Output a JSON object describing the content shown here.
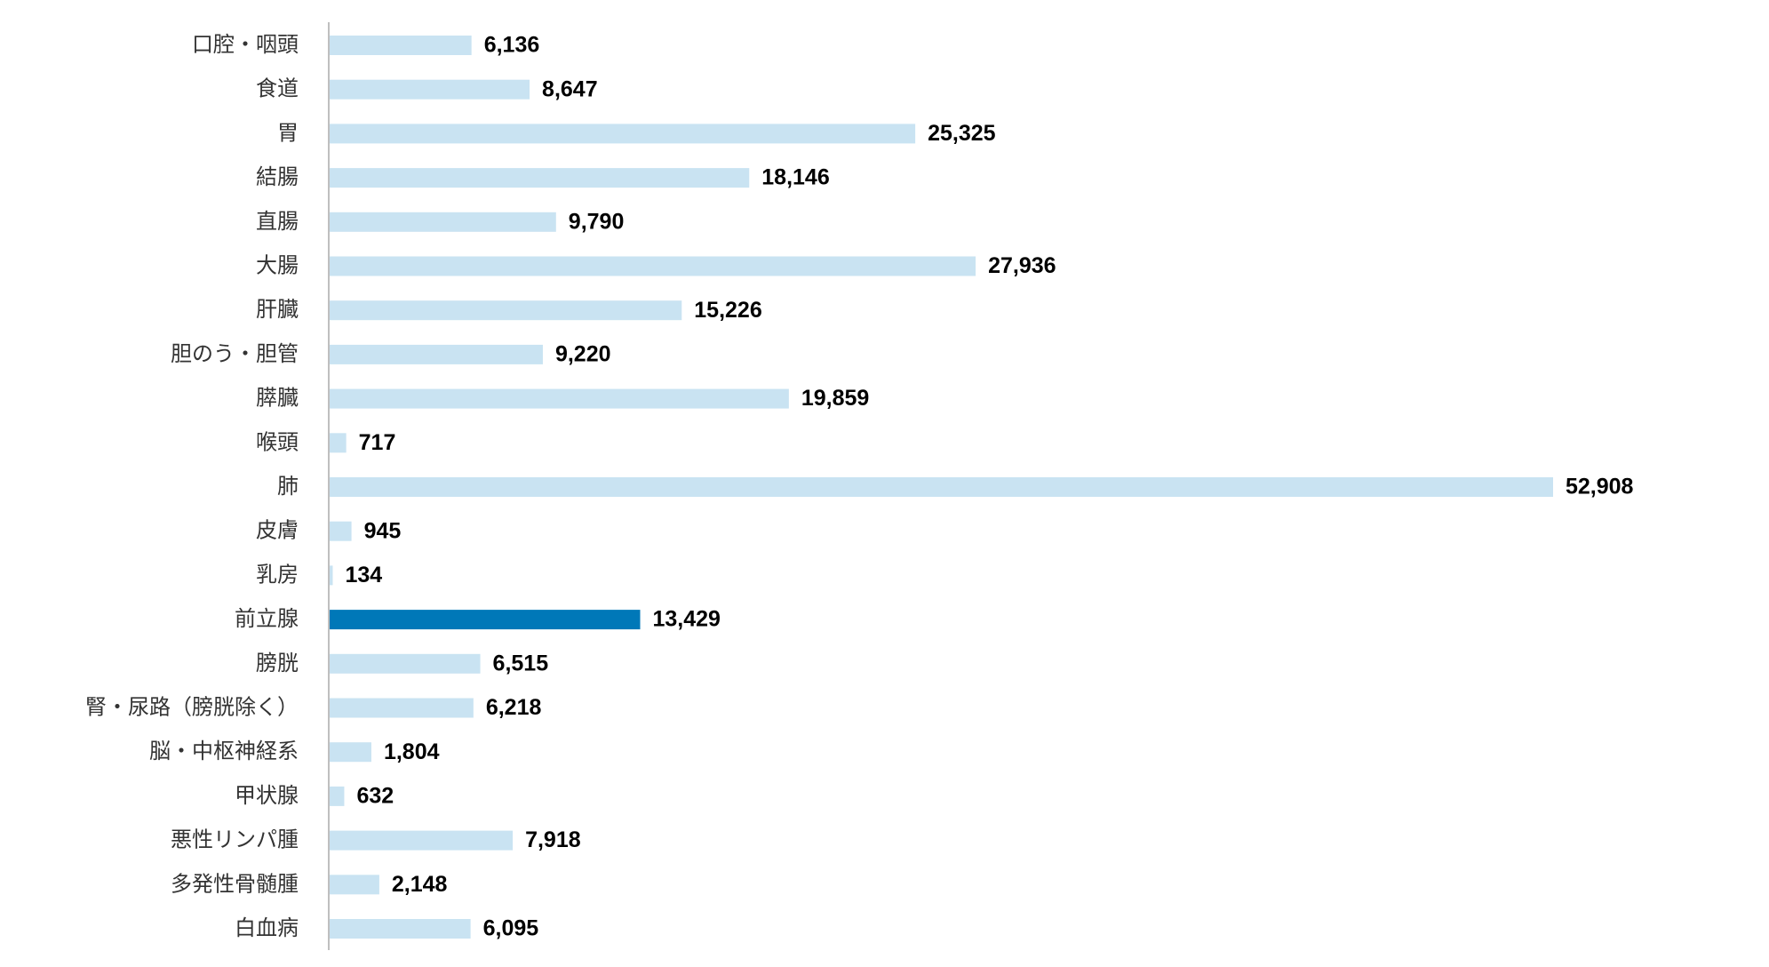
{
  "chart_data": {
    "type": "barh",
    "categories": [
      "口腔・咽頭",
      "食道",
      "胃",
      "結腸",
      "直腸",
      "大腸",
      "肝臓",
      "胆のう・胆管",
      "膵臓",
      "喉頭",
      "肺",
      "皮膚",
      "乳房",
      "前立腺",
      "膀胱",
      "腎・尿路（膀胱除く）",
      "脳・中枢神経系",
      "甲状腺",
      "悪性リンパ腫",
      "多発性骨髄腫",
      "白血病"
    ],
    "values": [
      6136,
      8647,
      25325,
      18146,
      9790,
      27936,
      15226,
      9220,
      19859,
      717,
      52908,
      945,
      134,
      13429,
      6515,
      6218,
      1804,
      632,
      7918,
      2148,
      6095
    ],
    "value_labels": [
      "6,136",
      "8,647",
      "25,325",
      "18,146",
      "9,790",
      "27,936",
      "15,226",
      "9,220",
      "19,859",
      "717",
      "52,908",
      "945",
      "134",
      "13,429",
      "6,515",
      "6,218",
      "1,804",
      "632",
      "7,918",
      "2,148",
      "6,095"
    ],
    "colors": [
      "#c9e3f2",
      "#c9e3f2",
      "#c9e3f2",
      "#c9e3f2",
      "#c9e3f2",
      "#c9e3f2",
      "#c9e3f2",
      "#c9e3f2",
      "#c9e3f2",
      "#c9e3f2",
      "#c9e3f2",
      "#c9e3f2",
      "#c9e3f2",
      "#0078b8",
      "#c9e3f2",
      "#c9e3f2",
      "#c9e3f2",
      "#c9e3f2",
      "#c9e3f2",
      "#c9e3f2",
      "#c9e3f2"
    ]
  }
}
